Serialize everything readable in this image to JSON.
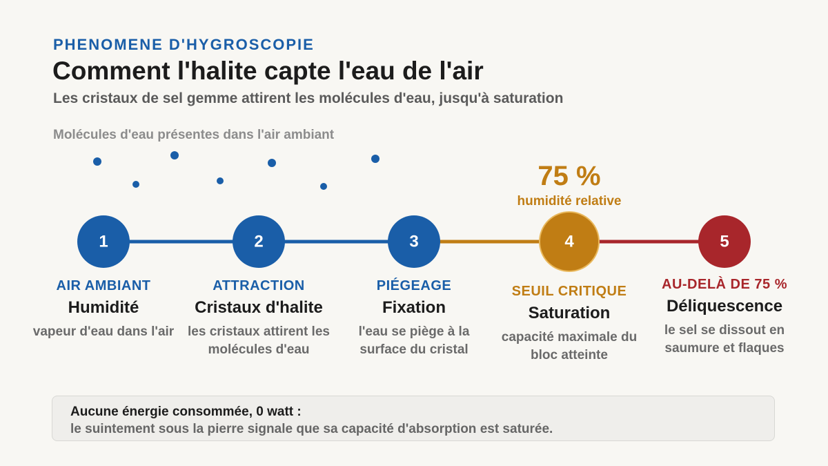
{
  "header": {
    "kicker": "PHENOMENE D'HYGROSCOPIE",
    "title": "Comment l'halite capte l'eau de l'air",
    "subtitle": "Les cristaux de sel gemme attirent les molécules d'eau, jusqu'à saturation"
  },
  "molecules_caption": "Molécules d'eau présentes dans l'air ambiant",
  "threshold": {
    "value": "75 %",
    "label": "humidité relative"
  },
  "steps": [
    {
      "number": "1",
      "label": "AIR AMBIANT",
      "title": "Humidité",
      "description": "vapeur d'eau dans l'air"
    },
    {
      "number": "2",
      "label": "ATTRACTION",
      "title": "Cristaux d'halite",
      "description": "les cristaux attirent les molécules d'eau"
    },
    {
      "number": "3",
      "label": "PIÉGEAGE",
      "title": "Fixation",
      "description": "l'eau se piège à la surface du cristal"
    },
    {
      "number": "4",
      "label": "SEUIL CRITIQUE",
      "title": "Saturation",
      "description": "capacité maximale du bloc atteinte"
    },
    {
      "number": "5",
      "label": "AU-DELÀ DE 75 %",
      "title": "Déliquescence",
      "description": "le sel se dissout en saumure et flaques"
    }
  ],
  "footer": {
    "headline": "Aucune énergie consommée, 0 watt :",
    "text": "le suintement sous la pierre signale que sa capacité d'absorption est saturée."
  }
}
